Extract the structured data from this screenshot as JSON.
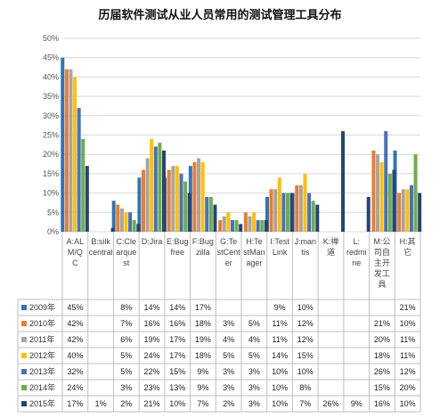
{
  "chart_data": {
    "type": "bar",
    "title": "历届软件测试从业人员常用的测试管理工具分布",
    "ylim": [
      0,
      50
    ],
    "yticks": [
      "0%",
      "5%",
      "10%",
      "15%",
      "20%",
      "25%",
      "30%",
      "35%",
      "40%",
      "45%",
      "50%"
    ],
    "grid": true,
    "legend_placement": "data-table-left",
    "categories": [
      "A:AL M/Q C",
      "B:silk central",
      "C:Cle arque st",
      "D:Jira",
      "E:Bug free",
      "F:Bug zilla",
      "G:Te stCent er",
      "H:Te stMan ager",
      "I:Test Link",
      "J:man tis",
      "K:禅 道",
      "L: redmi ne",
      "M:公 司自 主开 发工 具",
      "H:其 它"
    ],
    "series": [
      {
        "name": "2009年",
        "color": "#2F75B5",
        "values": [
          45,
          null,
          8,
          14,
          14,
          17,
          null,
          null,
          9,
          10,
          null,
          null,
          null,
          21
        ],
        "labels": [
          "45%",
          "",
          "8%",
          "14%",
          "14%",
          "17%",
          "",
          "",
          "9%",
          "10%",
          "",
          "",
          "",
          "21%"
        ]
      },
      {
        "name": "2010年",
        "color": "#ED7D31",
        "values": [
          42,
          null,
          7,
          16,
          16,
          18,
          3,
          5,
          11,
          12,
          null,
          null,
          21,
          10
        ],
        "labels": [
          "42%",
          "",
          "7%",
          "16%",
          "16%",
          "18%",
          "3%",
          "5%",
          "11%",
          "12%",
          "",
          "",
          "21%",
          "10%"
        ]
      },
      {
        "name": "2011年",
        "color": "#A5A5A5",
        "values": [
          42,
          null,
          6,
          19,
          17,
          19,
          4,
          4,
          11,
          12,
          null,
          null,
          20,
          11
        ],
        "labels": [
          "42%",
          "",
          "6%",
          "19%",
          "17%",
          "19%",
          "4%",
          "4%",
          "11%",
          "12%",
          "",
          "",
          "20%",
          "11%"
        ]
      },
      {
        "name": "2012年",
        "color": "#FFC000",
        "values": [
          40,
          null,
          5,
          24,
          17,
          18,
          5,
          5,
          14,
          15,
          null,
          null,
          18,
          11
        ],
        "labels": [
          "40%",
          "",
          "5%",
          "24%",
          "17%",
          "18%",
          "5%",
          "5%",
          "14%",
          "15%",
          "",
          "",
          "18%",
          "11%"
        ]
      },
      {
        "name": "2013年",
        "color": "#4472C4",
        "values": [
          32,
          null,
          5,
          22,
          15,
          9,
          3,
          3,
          10,
          10,
          null,
          null,
          26,
          12
        ],
        "labels": [
          "32%",
          "",
          "5%",
          "22%",
          "15%",
          "9%",
          "3%",
          "3%",
          "10%",
          "10%",
          "",
          "",
          "26%",
          "12%"
        ]
      },
      {
        "name": "2014年",
        "color": "#70AD47",
        "values": [
          24,
          null,
          3,
          23,
          13,
          9,
          3,
          3,
          10,
          8,
          null,
          null,
          15,
          20
        ],
        "labels": [
          "24%",
          "",
          "3%",
          "23%",
          "13%",
          "9%",
          "3%",
          "3%",
          "10%",
          "8%",
          "",
          "",
          "15%",
          "20%"
        ]
      },
      {
        "name": "2015年",
        "color": "#264478",
        "values": [
          17,
          1,
          2,
          21,
          10,
          7,
          2,
          3,
          10,
          7,
          26,
          9,
          16,
          10
        ],
        "labels": [
          "17%",
          "1%",
          "2%",
          "21%",
          "10%",
          "7%",
          "2%",
          "3%",
          "10%",
          "7%",
          "26%",
          "9%",
          "16%",
          "10%"
        ]
      }
    ]
  }
}
